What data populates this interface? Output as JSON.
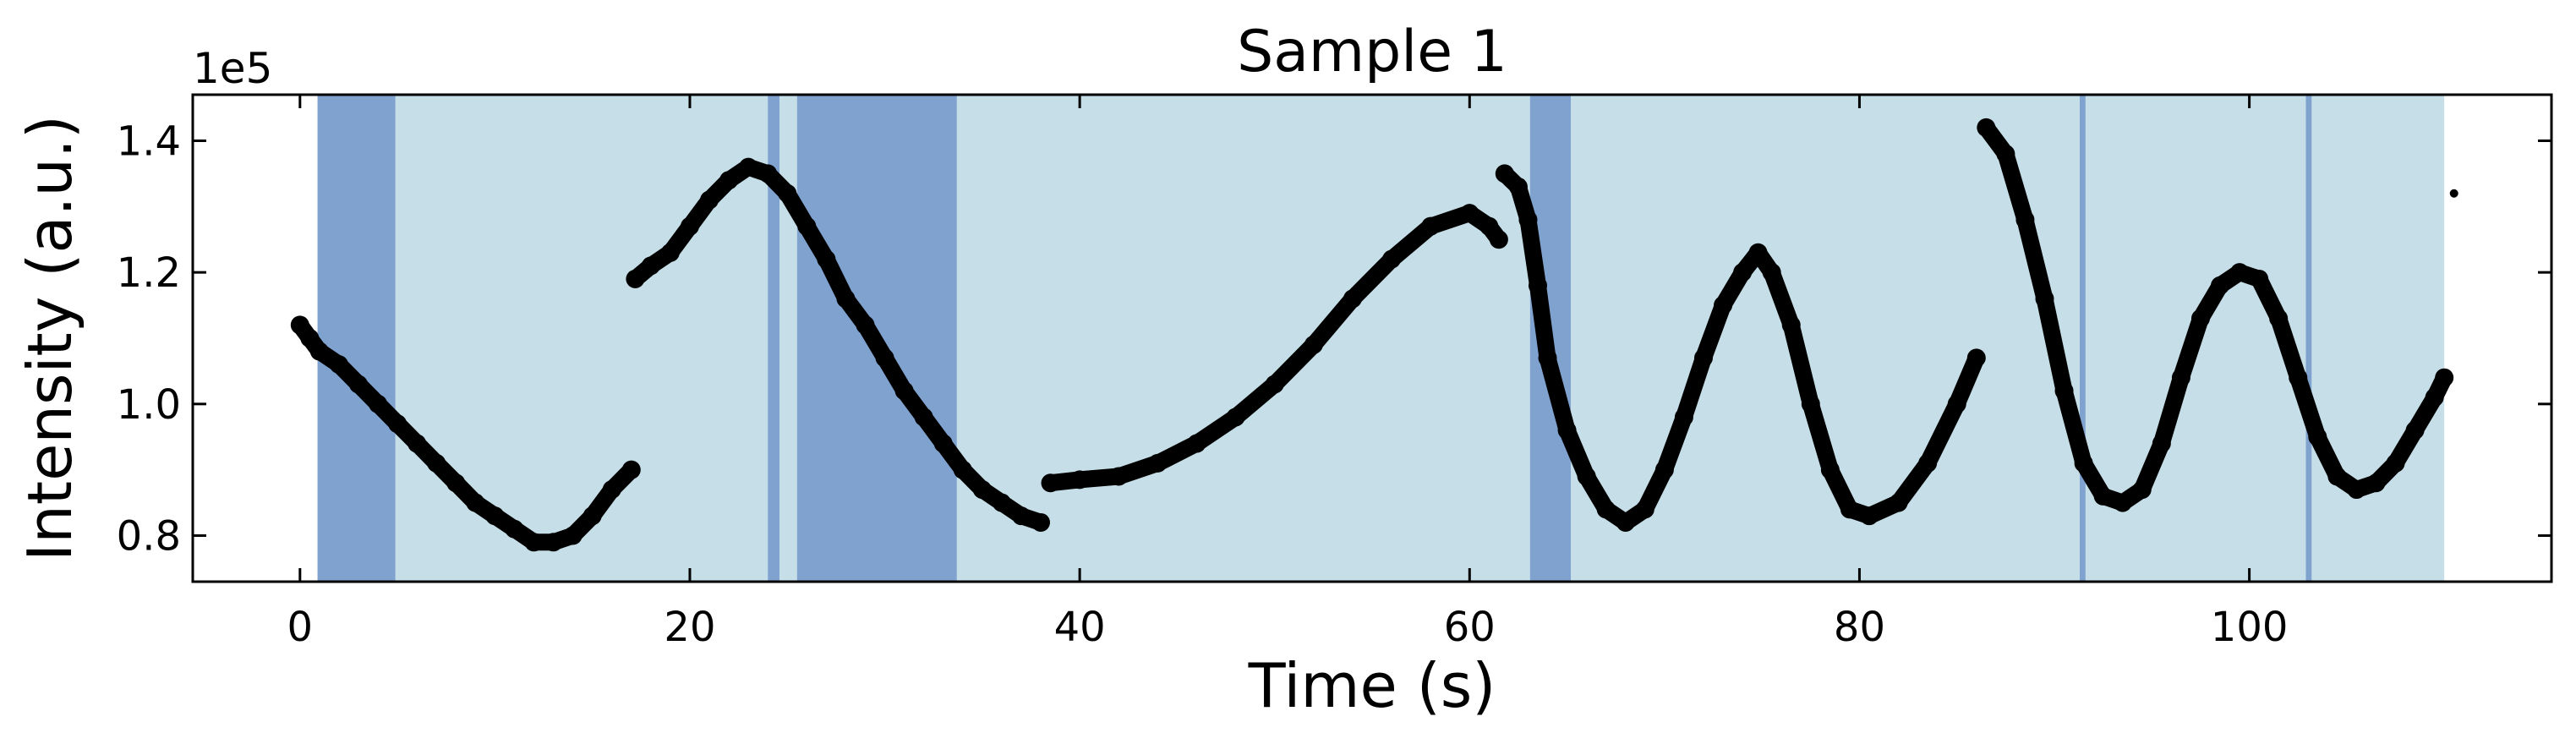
{
  "chart_data": {
    "type": "scatter",
    "title": "Sample 1",
    "xlabel": "Time (s)",
    "ylabel": "Intensity (a.u.)",
    "y_multiplier": "1e5",
    "xlim": [
      -5.5,
      115.5
    ],
    "ylim": [
      0.73,
      1.47
    ],
    "xticks": [
      0,
      20,
      40,
      60,
      80,
      100
    ],
    "xtick_labels": [
      "0",
      "20",
      "40",
      "60",
      "80",
      "100"
    ],
    "yticks": [
      0.8,
      1.0,
      1.2,
      1.4
    ],
    "ytick_labels": [
      "0.8",
      "1.0",
      "1.2",
      "1.4"
    ],
    "tick_direction": "in",
    "ticks_on_all_sides": true,
    "grid": false,
    "colors": {
      "light_band": "#c5dee7",
      "dark_band": "#7fa2cf",
      "points": "#000000"
    },
    "background_bands": [
      {
        "start": 0.9,
        "end": 4.9,
        "shade": "dark"
      },
      {
        "start": 4.9,
        "end": 24.0,
        "shade": "light"
      },
      {
        "start": 24.0,
        "end": 24.6,
        "shade": "dark"
      },
      {
        "start": 24.6,
        "end": 25.5,
        "shade": "light"
      },
      {
        "start": 25.5,
        "end": 33.7,
        "shade": "dark"
      },
      {
        "start": 33.7,
        "end": 63.1,
        "shade": "light"
      },
      {
        "start": 63.1,
        "end": 65.2,
        "shade": "dark"
      },
      {
        "start": 65.2,
        "end": 91.3,
        "shade": "light"
      },
      {
        "start": 91.3,
        "end": 91.6,
        "shade": "dark"
      },
      {
        "start": 91.6,
        "end": 102.9,
        "shade": "light"
      },
      {
        "start": 102.9,
        "end": 103.2,
        "shade": "dark"
      },
      {
        "start": 103.2,
        "end": 110.0,
        "shade": "light"
      }
    ],
    "series": [
      {
        "values": [
          [
            0.0,
            1.12
          ],
          [
            0.5,
            1.1
          ],
          [
            1.0,
            1.08
          ],
          [
            2.0,
            1.06
          ],
          [
            3.0,
            1.03
          ],
          [
            4.0,
            1.0
          ],
          [
            5.0,
            0.97
          ],
          [
            6.0,
            0.94
          ],
          [
            7.0,
            0.91
          ],
          [
            8.0,
            0.88
          ],
          [
            9.0,
            0.85
          ],
          [
            10.0,
            0.83
          ],
          [
            11.0,
            0.81
          ],
          [
            12.0,
            0.79
          ],
          [
            13.0,
            0.79
          ],
          [
            14.0,
            0.8
          ],
          [
            15.0,
            0.83
          ],
          [
            16.0,
            0.87
          ],
          [
            17.0,
            0.9
          ]
        ]
      },
      {
        "values": [
          [
            17.2,
            1.19
          ],
          [
            18.0,
            1.21
          ],
          [
            19.0,
            1.23
          ],
          [
            20.0,
            1.27
          ],
          [
            21.0,
            1.31
          ],
          [
            22.0,
            1.34
          ],
          [
            23.0,
            1.36
          ],
          [
            24.0,
            1.35
          ],
          [
            25.0,
            1.32
          ],
          [
            26.0,
            1.27
          ],
          [
            27.0,
            1.22
          ],
          [
            28.0,
            1.16
          ],
          [
            29.0,
            1.12
          ],
          [
            30.0,
            1.07
          ],
          [
            31.0,
            1.02
          ],
          [
            32.0,
            0.98
          ],
          [
            33.0,
            0.94
          ],
          [
            34.0,
            0.9
          ],
          [
            35.0,
            0.87
          ],
          [
            36.0,
            0.85
          ],
          [
            37.0,
            0.83
          ],
          [
            38.0,
            0.82
          ]
        ]
      },
      {
        "values": [
          [
            38.5,
            0.88
          ],
          [
            40.0,
            0.885
          ],
          [
            42.0,
            0.89
          ],
          [
            44.0,
            0.91
          ],
          [
            46.0,
            0.94
          ],
          [
            48.0,
            0.98
          ],
          [
            50.0,
            1.03
          ],
          [
            52.0,
            1.09
          ],
          [
            54.0,
            1.16
          ],
          [
            56.0,
            1.22
          ],
          [
            58.0,
            1.27
          ],
          [
            60.0,
            1.29
          ],
          [
            61.0,
            1.27
          ],
          [
            61.5,
            1.25
          ]
        ]
      },
      {
        "values": [
          [
            61.8,
            1.35
          ],
          [
            62.5,
            1.33
          ],
          [
            63.0,
            1.28
          ],
          [
            63.5,
            1.18
          ],
          [
            64.0,
            1.07
          ],
          [
            65.0,
            0.96
          ],
          [
            66.0,
            0.89
          ],
          [
            67.0,
            0.84
          ],
          [
            68.0,
            0.82
          ],
          [
            69.0,
            0.84
          ],
          [
            70.0,
            0.9
          ],
          [
            71.0,
            0.98
          ],
          [
            72.0,
            1.07
          ],
          [
            73.0,
            1.15
          ],
          [
            74.0,
            1.2
          ],
          [
            74.8,
            1.23
          ],
          [
            75.5,
            1.2
          ],
          [
            76.5,
            1.12
          ],
          [
            77.5,
            1.0
          ],
          [
            78.5,
            0.9
          ],
          [
            79.5,
            0.84
          ],
          [
            80.5,
            0.83
          ],
          [
            82.0,
            0.85
          ],
          [
            83.5,
            0.91
          ],
          [
            85.0,
            1.0
          ],
          [
            86.0,
            1.07
          ]
        ]
      },
      {
        "values": [
          [
            86.5,
            1.42
          ],
          [
            87.5,
            1.38
          ],
          [
            88.5,
            1.28
          ],
          [
            89.5,
            1.16
          ],
          [
            90.5,
            1.02
          ],
          [
            91.5,
            0.91
          ],
          [
            92.5,
            0.86
          ],
          [
            93.5,
            0.85
          ],
          [
            94.5,
            0.87
          ],
          [
            95.5,
            0.94
          ],
          [
            96.5,
            1.04
          ],
          [
            97.5,
            1.13
          ],
          [
            98.5,
            1.18
          ],
          [
            99.5,
            1.2
          ],
          [
            100.5,
            1.19
          ],
          [
            101.5,
            1.13
          ],
          [
            102.5,
            1.04
          ],
          [
            103.5,
            0.95
          ],
          [
            104.5,
            0.89
          ],
          [
            105.5,
            0.87
          ],
          [
            106.5,
            0.88
          ],
          [
            107.5,
            0.91
          ],
          [
            108.5,
            0.96
          ],
          [
            109.5,
            1.01
          ],
          [
            110.0,
            1.04
          ]
        ]
      },
      {
        "values": [
          [
            110.5,
            1.32
          ]
        ]
      }
    ]
  }
}
